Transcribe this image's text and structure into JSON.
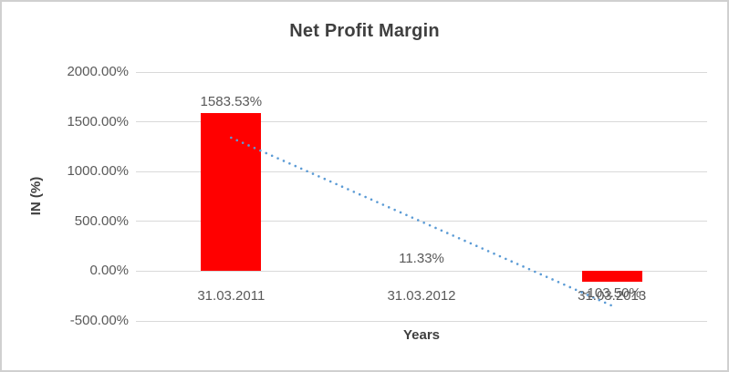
{
  "chart_data": {
    "type": "bar",
    "title": "Net Profit Margin",
    "xlabel": "Years",
    "ylabel": "IN (%)",
    "categories": [
      "31.03.2011",
      "31.03.2012",
      "31.03.2013"
    ],
    "series": [
      {
        "name": "Net Profit Margin",
        "values": [
          1583.53,
          11.33,
          -103.5
        ],
        "labels": [
          "1583.53%",
          "11.33%",
          "-103.50%"
        ],
        "color": "#ff0000"
      }
    ],
    "trendline": {
      "type": "linear",
      "style": "dotted",
      "color": "#5b9bd5"
    },
    "y_axis": {
      "min": -500,
      "max": 2000,
      "ticks": [
        {
          "value": 2000,
          "label": "2000.00%"
        },
        {
          "value": 1500,
          "label": "1500.00%"
        },
        {
          "value": 1000,
          "label": "1000.00%"
        },
        {
          "value": 500,
          "label": "500.00%"
        },
        {
          "value": 0,
          "label": "0.00%"
        },
        {
          "value": -500,
          "label": "-500.00%"
        }
      ]
    },
    "grid": true,
    "legend": false,
    "colors": {
      "bar": "#ff0000",
      "trendline": "#5b9bd5",
      "gridline": "#d9d9d9",
      "tick_text": "#595959",
      "title_text": "#3f3f3f",
      "border": "#d0d0d0",
      "background": "#ffffff"
    }
  }
}
